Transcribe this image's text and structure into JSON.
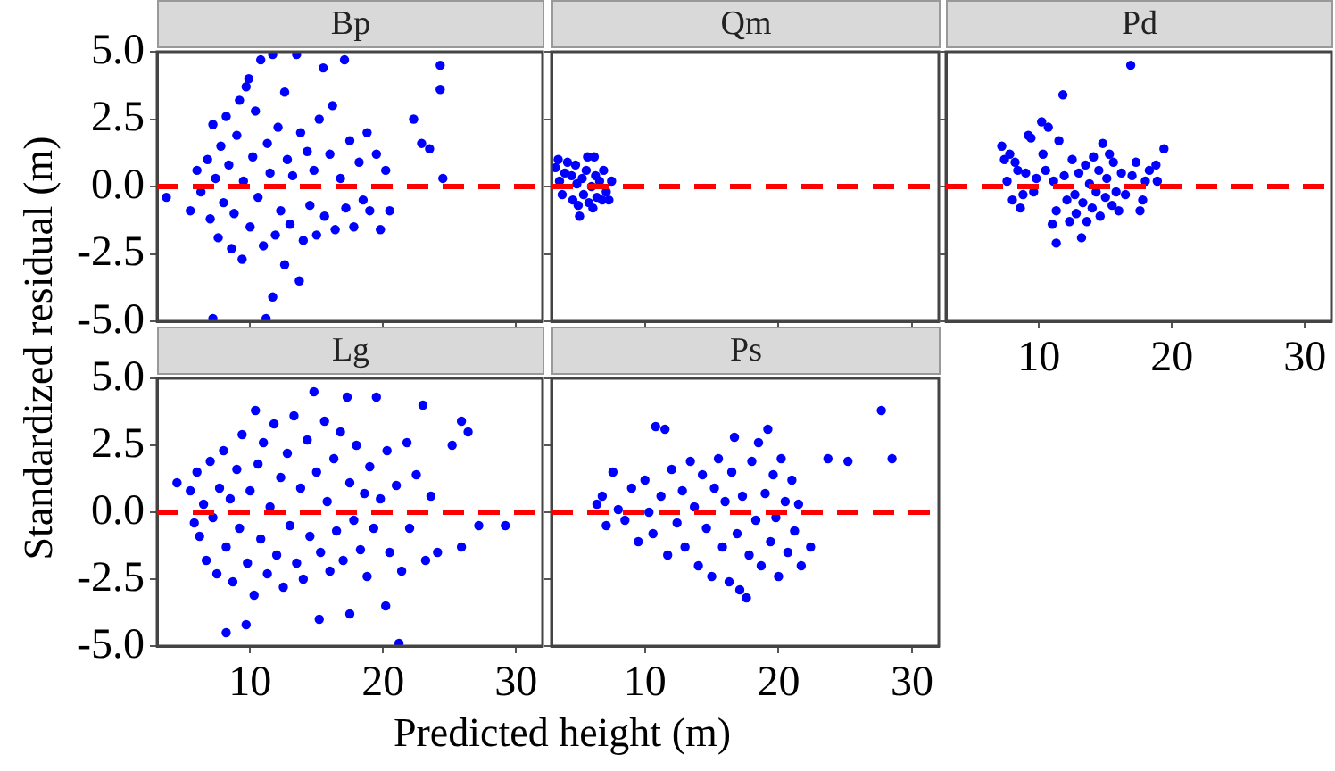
{
  "chart_data": [
    {
      "type": "scatter",
      "title": "Bp",
      "ylabel": "Standardized residual (m)",
      "xlim": [
        3,
        32
      ],
      "ylim": [
        -5,
        5
      ],
      "xticks": [
        {
          "value": 10,
          "label": null
        },
        {
          "value": 20,
          "label": null
        },
        {
          "value": 30,
          "label": null
        }
      ],
      "yticks": [
        {
          "value": -5,
          "label": "-5.0"
        },
        {
          "value": -2.5,
          "label": "-2.5"
        },
        {
          "value": 0,
          "label": "0.0"
        },
        {
          "value": 2.5,
          "label": "2.5"
        },
        {
          "value": 5,
          "label": "5.0"
        }
      ],
      "tick_labels": "y",
      "marker": "circle",
      "ref_lines": [
        {
          "axis": "y",
          "value": 0,
          "color": "#ff0000",
          "line_style": "dashed"
        }
      ],
      "series": [
        {
          "color": "#0000ff",
          "x": [
            3.7,
            5.5,
            6.0,
            6.3,
            6.8,
            7.0,
            7.2,
            7.4,
            7.6,
            7.8,
            8.0,
            8.2,
            8.4,
            8.6,
            8.8,
            9.0,
            9.2,
            9.4,
            9.5,
            9.7,
            9.9,
            10.0,
            10.2,
            10.4,
            10.6,
            10.8,
            11.0,
            11.2,
            11.3,
            11.5,
            11.7,
            11.7,
            11.9,
            12.1,
            12.3,
            12.6,
            12.6,
            12.8,
            13.0,
            13.2,
            13.5,
            13.7,
            13.8,
            14.0,
            14.3,
            14.5,
            14.8,
            15.0,
            15.2,
            15.5,
            15.6,
            16.0,
            16.2,
            16.4,
            16.8,
            17.1,
            17.2,
            17.5,
            17.8,
            18.2,
            18.5,
            18.8,
            19.0,
            19.5,
            19.8,
            20.2,
            20.5,
            7.2,
            22.3,
            22.9,
            23.5,
            24.3,
            24.3,
            24.5
          ],
          "values": [
            -0.4,
            -0.9,
            0.6,
            -0.2,
            1.0,
            -1.2,
            2.3,
            0.3,
            -1.9,
            1.5,
            -0.6,
            2.6,
            0.8,
            -2.3,
            -1.0,
            1.9,
            3.2,
            -2.7,
            0.2,
            3.7,
            4.0,
            -1.5,
            1.1,
            2.8,
            -0.4,
            4.7,
            -2.2,
            -4.9,
            1.6,
            0.5,
            4.9,
            -4.1,
            -1.8,
            2.2,
            -0.9,
            3.5,
            -2.9,
            1.0,
            -1.4,
            0.4,
            4.9,
            -3.5,
            2.0,
            -2.0,
            1.3,
            -0.7,
            0.6,
            -1.8,
            2.5,
            4.4,
            -1.1,
            1.2,
            3.0,
            -1.6,
            0.3,
            4.7,
            -0.8,
            1.7,
            -1.5,
            0.9,
            -0.5,
            2.0,
            -0.9,
            1.2,
            -1.6,
            0.6,
            -0.9,
            -4.9,
            2.5,
            1.6,
            1.4,
            4.5,
            3.6,
            0.3
          ]
        }
      ]
    },
    {
      "type": "scatter",
      "title": "Qm",
      "xlim": [
        3,
        32
      ],
      "ylim": [
        -5,
        5
      ],
      "xticks": [
        {
          "value": 10,
          "label": null
        },
        {
          "value": 20,
          "label": null
        },
        {
          "value": 30,
          "label": null
        }
      ],
      "yticks": [
        {
          "value": -5,
          "label": null
        },
        {
          "value": -2.5,
          "label": null
        },
        {
          "value": 0,
          "label": null
        },
        {
          "value": 2.5,
          "label": null
        },
        {
          "value": 5,
          "label": null
        }
      ],
      "tick_labels": false,
      "marker": "circle",
      "ref_lines": [
        {
          "axis": "y",
          "value": 0,
          "color": "#ff0000",
          "line_style": "dashed"
        }
      ],
      "series": [
        {
          "color": "#0000ff",
          "x": [
            3.3,
            3.5,
            3.6,
            3.8,
            4.0,
            4.2,
            4.5,
            4.6,
            4.8,
            4.9,
            5.0,
            5.1,
            5.3,
            5.4,
            5.6,
            5.7,
            5.8,
            6.0,
            6.1,
            6.3,
            6.4,
            6.6,
            6.8,
            7.1,
            7.3,
            7.5,
            6.2,
            6.9
          ],
          "values": [
            0.7,
            1.0,
            0.2,
            -0.3,
            0.5,
            0.9,
            0.4,
            -0.5,
            0.8,
            0.1,
            -0.7,
            -1.1,
            0.3,
            -0.3,
            0.6,
            1.1,
            -0.6,
            0.0,
            -0.8,
            0.4,
            -0.4,
            0.2,
            -0.5,
            -0.2,
            -0.5,
            0.2,
            1.1,
            0.6
          ]
        }
      ]
    },
    {
      "type": "scatter",
      "title": "Pd",
      "xlim": [
        3,
        32
      ],
      "ylim": [
        -5,
        5
      ],
      "xticks": [
        10,
        20,
        30
      ],
      "yticks": [
        {
          "value": -5,
          "label": null
        },
        {
          "value": -2.5,
          "label": null
        },
        {
          "value": 0,
          "label": null
        },
        {
          "value": 2.5,
          "label": null
        },
        {
          "value": 5,
          "label": null
        }
      ],
      "tick_labels": "x",
      "marker": "circle",
      "ref_lines": [
        {
          "axis": "y",
          "value": 0,
          "color": "#ff0000",
          "line_style": "dashed"
        }
      ],
      "series": [
        {
          "color": "#0000ff",
          "x": [
            7.2,
            7.4,
            7.6,
            7.8,
            8.0,
            8.2,
            8.4,
            8.6,
            8.8,
            9.0,
            9.2,
            9.4,
            9.6,
            9.8,
            10.2,
            10.3,
            10.5,
            10.7,
            11.0,
            11.1,
            11.3,
            11.3,
            11.5,
            11.8,
            11.9,
            12.1,
            12.3,
            12.5,
            12.7,
            12.8,
            13.0,
            13.2,
            13.3,
            13.5,
            13.6,
            13.8,
            14.0,
            14.1,
            14.3,
            14.5,
            14.6,
            14.8,
            15.0,
            15.1,
            15.3,
            15.5,
            15.6,
            15.8,
            16.0,
            16.2,
            16.5,
            16.9,
            17.0,
            17.3,
            17.6,
            17.8,
            18.0,
            18.3,
            18.8,
            18.9,
            19.4
          ],
          "values": [
            1.5,
            1.0,
            0.2,
            1.2,
            -0.5,
            0.9,
            0.6,
            -0.8,
            -0.3,
            0.5,
            1.9,
            1.8,
            -0.2,
            0.3,
            2.4,
            1.2,
            0.6,
            2.2,
            -1.4,
            0.2,
            -2.1,
            -0.9,
            1.7,
            3.4,
            0.4,
            -0.5,
            -1.3,
            1.0,
            -0.3,
            -1.0,
            0.5,
            -1.9,
            -0.6,
            0.8,
            -1.3,
            0.1,
            -0.8,
            1.1,
            -0.2,
            0.6,
            -1.1,
            1.6,
            -0.4,
            0.3,
            1.2,
            -0.7,
            0.9,
            -0.2,
            -0.9,
            0.5,
            -0.3,
            4.5,
            0.4,
            0.9,
            -0.9,
            -0.5,
            0.2,
            0.6,
            0.8,
            0.2,
            1.4
          ]
        }
      ]
    },
    {
      "type": "scatter",
      "title": "Lg",
      "xlim": [
        3,
        32
      ],
      "ylim": [
        -5,
        5
      ],
      "xticks": [
        10,
        20,
        30
      ],
      "yticks": [
        {
          "value": -5,
          "label": "-5.0"
        },
        {
          "value": -2.5,
          "label": "-2.5"
        },
        {
          "value": 0,
          "label": "0.0"
        },
        {
          "value": 2.5,
          "label": "2.5"
        },
        {
          "value": 5,
          "label": "5.0"
        }
      ],
      "marker": "circle",
      "ref_lines": [
        {
          "axis": "y",
          "value": 0,
          "color": "#ff0000",
          "line_style": "dashed"
        }
      ],
      "series": [
        {
          "color": "#0000ff",
          "x": [
            4.5,
            5.5,
            5.8,
            6.0,
            6.2,
            6.5,
            6.7,
            7.0,
            7.2,
            7.5,
            7.7,
            8.0,
            8.2,
            8.2,
            8.5,
            8.7,
            9.0,
            9.2,
            9.4,
            9.7,
            9.8,
            10.0,
            10.3,
            10.4,
            10.6,
            10.8,
            11.0,
            11.3,
            11.5,
            11.8,
            12.0,
            12.3,
            12.5,
            12.8,
            13.0,
            13.3,
            13.5,
            13.8,
            14.0,
            14.3,
            14.5,
            14.8,
            15.0,
            15.2,
            15.3,
            15.6,
            15.8,
            16.0,
            16.3,
            16.5,
            16.8,
            17.0,
            17.3,
            17.5,
            17.5,
            17.8,
            18.0,
            18.3,
            18.6,
            18.8,
            19.0,
            19.3,
            19.5,
            19.8,
            20.2,
            20.3,
            20.5,
            21.0,
            21.2,
            21.4,
            21.8,
            22.0,
            22.5,
            23.0,
            23.2,
            23.6,
            24.1,
            25.2,
            25.9,
            25.9,
            26.4,
            27.2,
            29.2
          ],
          "values": [
            1.1,
            0.8,
            -0.4,
            1.5,
            -0.9,
            0.3,
            -1.8,
            1.9,
            -0.2,
            -2.3,
            0.9,
            2.3,
            -1.3,
            -4.5,
            0.5,
            -2.6,
            1.6,
            -0.6,
            2.9,
            -4.2,
            -1.9,
            0.8,
            -3.1,
            3.8,
            1.8,
            -1.0,
            2.6,
            -2.3,
            0.2,
            3.3,
            -1.6,
            1.3,
            -2.8,
            2.2,
            -0.5,
            3.6,
            -1.9,
            0.9,
            -2.5,
            2.7,
            -0.9,
            4.5,
            1.5,
            -4.0,
            -1.5,
            3.4,
            0.4,
            -2.2,
            2.0,
            -0.7,
            3.0,
            -1.8,
            4.3,
            -3.8,
            1.1,
            -0.3,
            2.5,
            -1.4,
            0.7,
            -2.4,
            1.7,
            -0.6,
            4.3,
            0.5,
            -3.5,
            2.3,
            -1.5,
            1.0,
            -4.9,
            -2.2,
            2.6,
            -0.6,
            1.4,
            4.0,
            -1.8,
            0.6,
            -1.5,
            2.5,
            3.4,
            -1.3,
            3.0,
            -0.5,
            -0.5
          ]
        }
      ]
    },
    {
      "type": "scatter",
      "title": "Ps",
      "xlabel": "Predicted height (m)",
      "xlim": [
        3,
        32
      ],
      "ylim": [
        -5,
        5
      ],
      "xticks": [
        10,
        20,
        30
      ],
      "yticks": [
        {
          "value": -5,
          "label": null
        },
        {
          "value": -2.5,
          "label": null
        },
        {
          "value": 0,
          "label": null
        },
        {
          "value": 2.5,
          "label": null
        },
        {
          "value": 5,
          "label": null
        }
      ],
      "tick_labels": "x",
      "marker": "circle",
      "ref_lines": [
        {
          "axis": "y",
          "value": 0,
          "color": "#ff0000",
          "line_style": "dashed"
        }
      ],
      "series": [
        {
          "color": "#0000ff",
          "x": [
            6.4,
            6.8,
            7.1,
            7.6,
            8.0,
            8.5,
            9.0,
            9.5,
            10.0,
            10.3,
            10.6,
            10.8,
            11.2,
            11.5,
            11.7,
            12.0,
            12.4,
            12.8,
            13.0,
            13.4,
            13.7,
            14.0,
            14.3,
            14.6,
            15.0,
            15.2,
            15.5,
            15.8,
            16.0,
            16.3,
            16.5,
            16.7,
            16.9,
            17.1,
            17.3,
            17.6,
            17.8,
            18.0,
            18.3,
            18.5,
            18.7,
            19.0,
            19.2,
            19.4,
            19.6,
            19.8,
            20.0,
            20.2,
            20.5,
            20.7,
            21.0,
            21.2,
            21.5,
            21.7,
            22.4,
            23.7,
            25.2,
            27.7,
            28.5
          ],
          "values": [
            0.3,
            0.6,
            -0.5,
            1.5,
            0.1,
            -0.3,
            0.9,
            -1.1,
            1.2,
            0.0,
            -0.8,
            3.2,
            0.6,
            3.1,
            -1.6,
            1.6,
            -0.4,
            0.8,
            -1.3,
            1.9,
            0.2,
            -2.0,
            1.4,
            -0.6,
            -2.4,
            0.9,
            2.0,
            -1.3,
            0.4,
            -2.6,
            1.5,
            2.8,
            -0.8,
            -2.9,
            0.6,
            -3.2,
            -1.6,
            1.9,
            -0.3,
            2.6,
            -2.0,
            0.7,
            3.1,
            -1.1,
            1.4,
            -0.2,
            -2.4,
            2.0,
            0.4,
            -1.5,
            1.2,
            -0.7,
            0.3,
            -2.0,
            -1.3,
            2.0,
            1.9,
            3.8,
            2.0
          ]
        }
      ]
    }
  ]
}
